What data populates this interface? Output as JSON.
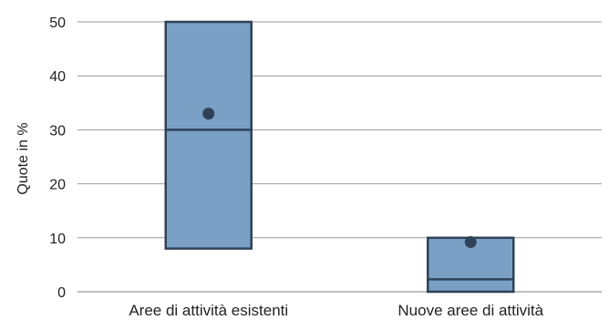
{
  "chart_data": {
    "type": "boxplot",
    "title": "",
    "xlabel": "",
    "ylabel": "Quote in %",
    "ylim": [
      0,
      50
    ],
    "yticks": [
      0,
      10,
      20,
      30,
      40,
      50
    ],
    "grid": "horizontal",
    "categories": [
      "Aree di attività esistenti",
      "Nuove aree di attività"
    ],
    "boxes": [
      {
        "category": "Aree di attività esistenti",
        "q1": 8,
        "median": 30,
        "q3": 50,
        "mean": 33
      },
      {
        "category": "Nuove aree di attività",
        "q1": 0,
        "median": 2.3,
        "q3": 10,
        "mean": 9.2
      }
    ],
    "colors": {
      "box_fill": "#7aa0c5",
      "box_stroke": "#2f4258",
      "mean_dot": "#2f4258",
      "grid": "#999999"
    }
  }
}
